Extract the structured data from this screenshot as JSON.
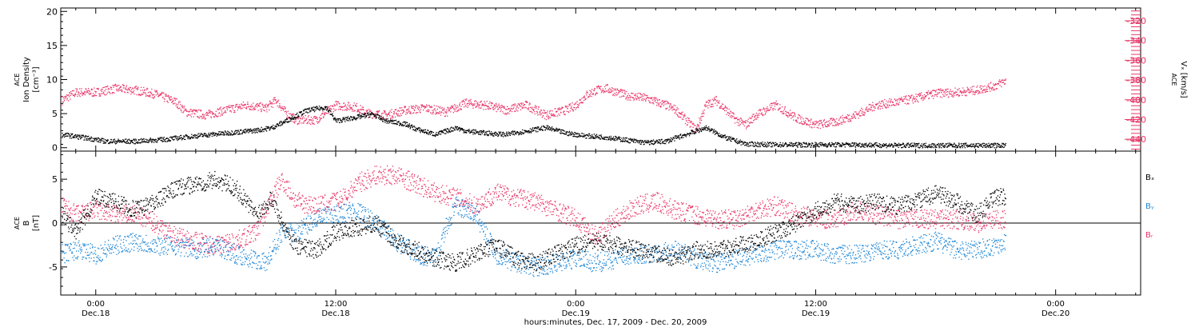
{
  "xaxis": {
    "caption": "hours:minutes, Dec. 17, 2009 - Dec. 20, 2009",
    "ticks": [
      {
        "time": "0:00",
        "date": "Dec.18",
        "hours": 24
      },
      {
        "time": "12:00",
        "date": "Dec.18",
        "hours": 36
      },
      {
        "time": "0:00",
        "date": "Dec.19",
        "hours": 48
      },
      {
        "time": "12:00",
        "date": "Dec.19",
        "hours": 60
      },
      {
        "time": "0:00",
        "date": "Dec.20",
        "hours": 72
      }
    ],
    "range_hours": [
      22.25,
      76.25
    ]
  },
  "colors": {
    "black": "#000000",
    "pink": "#e8386a",
    "blue": "#1d86d6",
    "axis": "#000000"
  },
  "chart_data": [
    {
      "type": "scatter",
      "panel": "plasma",
      "left_axis": {
        "label_lines": [
          "ACE",
          "Ion Density",
          "[cm⁻³]"
        ],
        "ylim": [
          -0.5,
          20.5
        ],
        "ticks": [
          0,
          5,
          10,
          15,
          20
        ]
      },
      "right_axis": {
        "label_lines": [
          "ACE",
          "Vₓ [km/s]"
        ],
        "ylim": [
          -452,
          -307
        ],
        "ticks": [
          -320,
          -340,
          -360,
          -380,
          -400,
          -420,
          -440
        ],
        "color": "#e8386a"
      },
      "series": [
        {
          "color": "black",
          "axis": "left",
          "x": [
            22.3,
            23.5,
            24.5,
            26.0,
            27.5,
            29.0,
            30.5,
            32.0,
            32.8,
            33.5,
            34.5,
            35.5,
            36.0,
            37.0,
            37.8,
            38.5,
            39.5,
            40.0,
            41.0,
            42.0,
            42.5,
            43.5,
            44.5,
            45.5,
            46.5,
            47.5,
            48.5,
            49.5,
            50.5,
            51.5,
            52.5,
            53.0,
            54.0,
            54.5,
            55.5,
            56.5,
            58.0,
            60.0,
            62.0,
            64.0,
            66.0,
            68.0,
            69.5
          ],
          "y": [
            2.0,
            1.5,
            1.0,
            1.0,
            1.3,
            1.8,
            2.2,
            2.6,
            3.0,
            4.0,
            5.5,
            6.0,
            4.0,
            4.5,
            5.0,
            4.0,
            3.5,
            2.8,
            2.0,
            3.0,
            2.5,
            2.2,
            2.0,
            2.5,
            3.0,
            2.2,
            1.8,
            1.6,
            1.2,
            0.8,
            1.0,
            1.5,
            2.5,
            3.0,
            1.5,
            0.6,
            0.5,
            0.5,
            0.5,
            0.4,
            0.4,
            0.4,
            0.4
          ]
        },
        {
          "color": "pink",
          "axis": "right",
          "x": [
            22.3,
            23.0,
            24.0,
            25.0,
            26.0,
            27.0,
            28.0,
            28.5,
            29.5,
            30.5,
            31.5,
            32.5,
            33.0,
            33.5,
            34.0,
            35.0,
            36.0,
            37.0,
            37.5,
            38.5,
            39.5,
            40.5,
            41.5,
            42.5,
            43.5,
            44.5,
            45.5,
            46.5,
            47.5,
            48.0,
            48.5,
            49.0,
            49.5,
            50.5,
            51.5,
            52.5,
            53.0,
            53.5,
            54.0,
            54.5,
            55.0,
            55.5,
            56.0,
            56.5,
            57.0,
            58.0,
            59.0,
            60.0,
            61.0,
            62.0,
            63.0,
            64.0,
            65.0,
            66.0,
            67.0,
            68.0,
            69.0,
            69.5
          ],
          "y": [
            -400,
            -392,
            -392,
            -388,
            -390,
            -394,
            -402,
            -412,
            -415,
            -410,
            -405,
            -408,
            -400,
            -413,
            -420,
            -420,
            -405,
            -407,
            -413,
            -415,
            -410,
            -408,
            -412,
            -403,
            -405,
            -410,
            -405,
            -415,
            -410,
            -405,
            -395,
            -390,
            -388,
            -395,
            -398,
            -405,
            -410,
            -420,
            -430,
            -405,
            -400,
            -410,
            -420,
            -425,
            -415,
            -405,
            -418,
            -425,
            -422,
            -415,
            -405,
            -402,
            -398,
            -393,
            -392,
            -390,
            -385,
            -380
          ]
        }
      ]
    },
    {
      "type": "scatter",
      "panel": "magnetic-field",
      "left_axis": {
        "label_lines": [
          "ACE",
          "B",
          "[nT]"
        ],
        "ylim": [
          -8.2,
          8.2
        ],
        "ticks": [
          -5,
          0,
          5
        ]
      },
      "zero_line": true,
      "legend": [
        {
          "label": "Bₓ",
          "color": "black"
        },
        {
          "label": "Bᵧ",
          "color": "blue"
        },
        {
          "label": "Bᵣ",
          "color": "pink"
        }
      ],
      "series": [
        {
          "name": "Bₓ",
          "color": "black",
          "x": [
            22.3,
            23.0,
            24.0,
            25.0,
            26.0,
            27.0,
            28.0,
            29.0,
            30.0,
            31.0,
            32.0,
            32.8,
            33.3,
            34.0,
            35.0,
            36.0,
            37.0,
            38.0,
            39.0,
            40.0,
            41.0,
            42.0,
            43.0,
            44.0,
            45.0,
            46.0,
            47.0,
            48.0,
            49.0,
            50.0,
            51.0,
            52.0,
            53.0,
            54.0,
            55.0,
            56.0,
            57.0,
            58.0,
            59.0,
            60.0,
            61.0,
            62.0,
            63.0,
            64.0,
            65.0,
            66.0,
            67.0,
            68.0,
            69.0,
            69.5
          ],
          "y": [
            1.0,
            -1.0,
            3.0,
            2.5,
            1.5,
            2.5,
            4.0,
            4.5,
            5.0,
            4.0,
            1.0,
            3.0,
            0.0,
            -2.5,
            -3.0,
            -1.0,
            -0.5,
            0.0,
            -2.0,
            -3.0,
            -4.0,
            -4.5,
            -3.5,
            -2.5,
            -4.0,
            -4.5,
            -3.5,
            -2.5,
            -2.0,
            -2.5,
            -3.0,
            -3.5,
            -4.0,
            -3.0,
            -3.0,
            -2.5,
            -2.0,
            -1.0,
            0.0,
            1.5,
            2.5,
            2.0,
            2.5,
            2.0,
            2.5,
            3.5,
            2.5,
            1.0,
            3.0,
            3.0
          ]
        },
        {
          "name": "Bᵧ",
          "color": "blue",
          "x": [
            22.3,
            23.0,
            24.0,
            25.0,
            26.0,
            27.0,
            28.0,
            29.0,
            30.0,
            31.0,
            31.8,
            32.5,
            33.3,
            34.0,
            35.0,
            36.0,
            37.0,
            38.0,
            39.0,
            40.0,
            41.0,
            41.5,
            42.0,
            43.0,
            44.0,
            45.0,
            46.0,
            47.0,
            48.0,
            49.0,
            50.0,
            51.0,
            52.0,
            53.0,
            54.0,
            55.0,
            56.0,
            57.0,
            58.0,
            59.0,
            60.0,
            61.0,
            62.0,
            63.0,
            64.0,
            65.0,
            66.0,
            67.0,
            68.0,
            69.0,
            69.5
          ],
          "y": [
            -3.5,
            -3.0,
            -3.5,
            -2.5,
            -2.0,
            -2.5,
            -2.5,
            -3.0,
            -2.5,
            -3.5,
            -4.0,
            -4.5,
            -1.0,
            -1.0,
            0.5,
            1.0,
            1.5,
            0.0,
            -2.0,
            -3.5,
            -4.0,
            -0.5,
            2.0,
            1.0,
            -3.5,
            -4.5,
            -5.0,
            -4.5,
            -4.0,
            -4.5,
            -4.0,
            -3.5,
            -3.5,
            -3.0,
            -4.0,
            -4.5,
            -4.0,
            -3.5,
            -3.0,
            -3.0,
            -3.0,
            -3.5,
            -3.5,
            -3.0,
            -3.0,
            -2.5,
            -2.0,
            -3.0,
            -3.0,
            -2.5,
            -2.0
          ]
        },
        {
          "name": "Bᵣ",
          "color": "pink",
          "x": [
            22.3,
            23.0,
            24.0,
            25.0,
            26.0,
            27.0,
            28.0,
            29.0,
            30.0,
            31.0,
            32.0,
            32.8,
            33.3,
            34.0,
            35.0,
            36.0,
            36.5,
            37.0,
            38.0,
            39.0,
            40.0,
            41.0,
            42.0,
            43.0,
            44.0,
            45.0,
            46.0,
            47.0,
            48.0,
            49.0,
            50.0,
            51.0,
            52.0,
            53.0,
            54.0,
            55.0,
            56.0,
            57.0,
            58.0,
            59.0,
            60.0,
            61.0,
            62.0,
            63.0,
            64.0,
            65.0,
            66.0,
            67.0,
            68.0,
            69.0,
            69.5
          ],
          "y": [
            2.0,
            1.0,
            1.5,
            1.0,
            1.0,
            0.0,
            -1.5,
            -2.0,
            -2.5,
            -2.0,
            -1.0,
            3.0,
            5.0,
            2.5,
            2.0,
            2.5,
            3.0,
            4.5,
            5.5,
            5.5,
            4.5,
            3.5,
            3.0,
            2.0,
            3.5,
            3.0,
            2.5,
            1.5,
            0.5,
            -1.5,
            0.5,
            2.0,
            2.5,
            1.5,
            1.0,
            0.5,
            0.5,
            1.5,
            2.0,
            1.0,
            0.5,
            0.5,
            1.5,
            1.0,
            0.5,
            0.5,
            0.5,
            0.5,
            0.0,
            0.5,
            0.5
          ]
        }
      ]
    }
  ]
}
